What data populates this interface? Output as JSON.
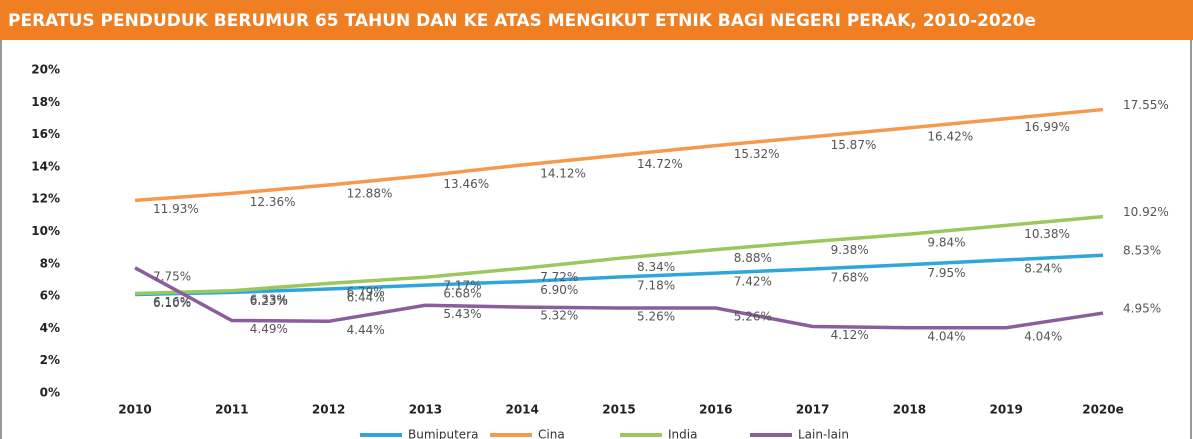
{
  "chart_data": {
    "type": "line",
    "title": "PERATUS PENDUDUK BERUMUR 65 TAHUN DAN KE ATAS MENGIKUT ETNIK BAGI NEGERI PERAK, 2010-2020e",
    "categories": [
      "2010",
      "2011",
      "2012",
      "2013",
      "2014",
      "2015",
      "2016",
      "2017",
      "2018",
      "2019",
      "2020e"
    ],
    "ylim": [
      0,
      20
    ],
    "yticks": [
      {
        "value": 0,
        "label": "0%"
      },
      {
        "value": 2,
        "label": "2%"
      },
      {
        "value": 4,
        "label": "4%"
      },
      {
        "value": 6,
        "label": "6%"
      },
      {
        "value": 8,
        "label": "8%"
      },
      {
        "value": 10,
        "label": "10%"
      },
      {
        "value": 12,
        "label": "12%"
      },
      {
        "value": 14,
        "label": "14%"
      },
      {
        "value": 16,
        "label": "16%"
      },
      {
        "value": 18,
        "label": "18%"
      },
      {
        "value": 20,
        "label": "20%"
      }
    ],
    "legend": "bottom",
    "series": [
      {
        "name": "Bumiputera",
        "color": "#2ea6dd",
        "values": [
          6.1,
          6.23,
          6.44,
          6.68,
          6.9,
          7.18,
          7.42,
          7.68,
          7.95,
          8.24,
          8.53
        ],
        "value_labels": [
          "6.10%",
          "6.23%",
          "6.44%",
          "6.68%",
          "6.90%",
          "7.18%",
          "7.42%",
          "7.68%",
          "7.95%",
          "8.24%",
          "8.53%"
        ]
      },
      {
        "name": "Cina",
        "color": "#f59a4c",
        "values": [
          11.93,
          12.36,
          12.88,
          13.46,
          14.12,
          14.72,
          15.32,
          15.87,
          16.42,
          16.99,
          17.55
        ],
        "value_labels": [
          "11.93%",
          "12.36%",
          "12.88%",
          "13.46%",
          "14.12%",
          "14.72%",
          "15.32%",
          "15.87%",
          "16.42%",
          "16.99%",
          "17.55%"
        ]
      },
      {
        "name": "India",
        "color": "#9cc75c",
        "values": [
          6.16,
          6.33,
          6.79,
          7.17,
          7.72,
          8.34,
          8.88,
          9.38,
          9.84,
          10.38,
          10.92
        ],
        "value_labels": [
          "6.16%",
          "6.33%",
          "6.79%",
          "7.17%",
          "7.72%",
          "8.34%",
          "8.88%",
          "9.38%",
          "9.84%",
          "10.38%",
          "10.92%"
        ]
      },
      {
        "name": "Lain-lain",
        "color": "#8b5c9e",
        "values": [
          7.75,
          4.49,
          4.44,
          5.43,
          5.32,
          5.26,
          5.26,
          4.12,
          4.04,
          4.04,
          4.95
        ],
        "value_labels": [
          "7.75%",
          "4.49%",
          "4.44%",
          "5.43%",
          "5.32%",
          "5.26%",
          "5.26%",
          "4.12%",
          "4.04%",
          "4.04%",
          "4.95%"
        ]
      }
    ]
  }
}
